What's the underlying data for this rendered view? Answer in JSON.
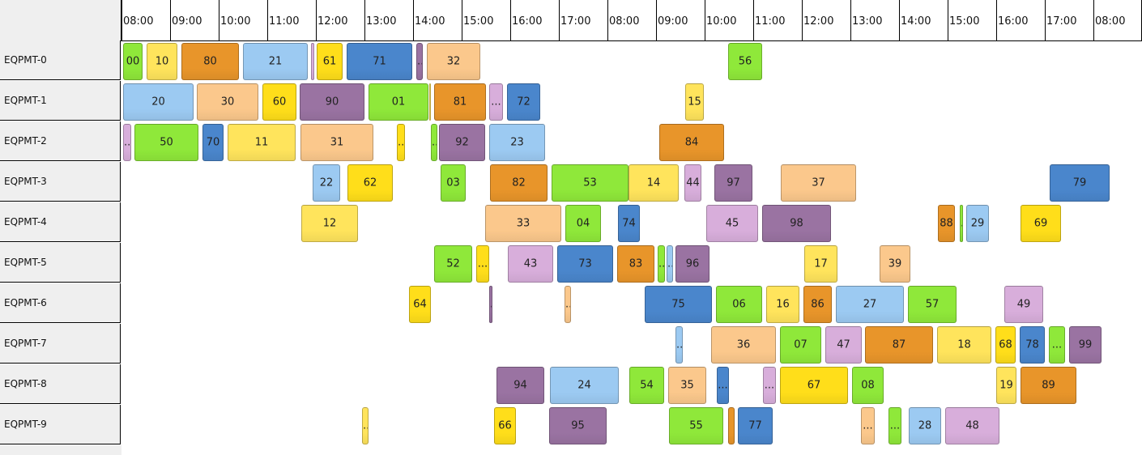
{
  "timeline": {
    "hours": [
      "08:00",
      "09:00",
      "10:00",
      "11:00",
      "12:00",
      "13:00",
      "14:00",
      "15:00",
      "16:00",
      "17:00",
      "08:00",
      "09:00",
      "10:00",
      "11:00",
      "12:00",
      "13:00",
      "14:00",
      "15:00",
      "16:00",
      "17:00",
      "08:00"
    ]
  },
  "colors": {
    "green": "#8fe83a",
    "yellow": "#ffe45c",
    "orange": "#e8952a",
    "lightblue": "#9ccaf2",
    "purple": "#9a73a2",
    "peach": "#fbc88c",
    "gold": "#ffde1a",
    "blue": "#4a86cc",
    "pink": "#d8aedb"
  },
  "rows": [
    {
      "name": "EQPMT-0",
      "tasks": [
        {
          "label": "00",
          "color": "green"
        },
        {
          "label": "10",
          "color": "yellow"
        },
        {
          "label": "80",
          "color": "orange"
        },
        {
          "label": "21",
          "color": "lightblue"
        },
        {
          "label": "",
          "color": "pink"
        },
        {
          "label": "61",
          "color": "gold"
        },
        {
          "label": "71",
          "color": "blue"
        },
        {
          "label": "...",
          "color": "purple"
        },
        {
          "label": "32",
          "color": "peach"
        },
        {
          "label": "56",
          "color": "green"
        }
      ]
    },
    {
      "name": "EQPMT-1",
      "tasks": [
        {
          "label": "20",
          "color": "lightblue"
        },
        {
          "label": "30",
          "color": "peach"
        },
        {
          "label": "60",
          "color": "gold"
        },
        {
          "label": "90",
          "color": "purple"
        },
        {
          "label": "01",
          "color": "green"
        },
        {
          "label": "",
          "color": "yellow"
        },
        {
          "label": "81",
          "color": "orange"
        },
        {
          "label": "...",
          "color": "pink"
        },
        {
          "label": "72",
          "color": "blue"
        },
        {
          "label": "15",
          "color": "yellow"
        }
      ]
    },
    {
      "name": "EQPMT-2",
      "tasks": [
        {
          "label": "...",
          "color": "pink"
        },
        {
          "label": "50",
          "color": "green"
        },
        {
          "label": "70",
          "color": "blue"
        },
        {
          "label": "11",
          "color": "yellow"
        },
        {
          "label": "31",
          "color": "peach"
        },
        {
          "label": "...",
          "color": "gold"
        },
        {
          "label": "...",
          "color": "green"
        },
        {
          "label": "92",
          "color": "purple"
        },
        {
          "label": "23",
          "color": "lightblue"
        },
        {
          "label": "84",
          "color": "orange"
        }
      ]
    },
    {
      "name": "EQPMT-3",
      "tasks": [
        {
          "label": "22",
          "color": "lightblue"
        },
        {
          "label": "62",
          "color": "gold"
        },
        {
          "label": "03",
          "color": "green"
        },
        {
          "label": "82",
          "color": "orange"
        },
        {
          "label": "53",
          "color": "green"
        },
        {
          "label": "14",
          "color": "yellow"
        },
        {
          "label": "44",
          "color": "pink"
        },
        {
          "label": "97",
          "color": "purple"
        },
        {
          "label": "37",
          "color": "peach"
        },
        {
          "label": "79",
          "color": "blue"
        }
      ]
    },
    {
      "name": "EQPMT-4",
      "tasks": [
        {
          "label": "12",
          "color": "yellow"
        },
        {
          "label": "33",
          "color": "peach"
        },
        {
          "label": "04",
          "color": "green"
        },
        {
          "label": "74",
          "color": "blue"
        },
        {
          "label": "45",
          "color": "pink"
        },
        {
          "label": "98",
          "color": "purple"
        },
        {
          "label": "88",
          "color": "orange"
        },
        {
          "label": ".",
          "color": "green"
        },
        {
          "label": "29",
          "color": "lightblue"
        },
        {
          "label": "69",
          "color": "gold"
        }
      ]
    },
    {
      "name": "EQPMT-5",
      "tasks": [
        {
          "label": "52",
          "color": "green"
        },
        {
          "label": "...",
          "color": "gold"
        },
        {
          "label": "43",
          "color": "pink"
        },
        {
          "label": "73",
          "color": "blue"
        },
        {
          "label": "83",
          "color": "orange"
        },
        {
          "label": "...",
          "color": "green"
        },
        {
          "label": "...",
          "color": "lightblue"
        },
        {
          "label": "96",
          "color": "purple"
        },
        {
          "label": "17",
          "color": "yellow"
        },
        {
          "label": "39",
          "color": "peach"
        }
      ]
    },
    {
      "name": "EQPMT-6",
      "tasks": [
        {
          "label": "64",
          "color": "gold"
        },
        {
          "label": ".",
          "color": "purple"
        },
        {
          "label": "...",
          "color": "peach"
        },
        {
          "label": "75",
          "color": "blue"
        },
        {
          "label": "06",
          "color": "green"
        },
        {
          "label": "16",
          "color": "yellow"
        },
        {
          "label": "86",
          "color": "orange"
        },
        {
          "label": "27",
          "color": "lightblue"
        },
        {
          "label": "57",
          "color": "green"
        },
        {
          "label": "49",
          "color": "pink"
        }
      ]
    },
    {
      "name": "EQPMT-7",
      "tasks": [
        {
          "label": "...",
          "color": "lightblue"
        },
        {
          "label": "36",
          "color": "peach"
        },
        {
          "label": "07",
          "color": "green"
        },
        {
          "label": "47",
          "color": "pink"
        },
        {
          "label": "87",
          "color": "orange"
        },
        {
          "label": "18",
          "color": "yellow"
        },
        {
          "label": "68",
          "color": "gold"
        },
        {
          "label": "78",
          "color": "blue"
        },
        {
          "label": "...",
          "color": "green"
        },
        {
          "label": "99",
          "color": "purple"
        }
      ]
    },
    {
      "name": "EQPMT-8",
      "tasks": [
        {
          "label": "94",
          "color": "purple"
        },
        {
          "label": "24",
          "color": "lightblue"
        },
        {
          "label": "54",
          "color": "green"
        },
        {
          "label": "35",
          "color": "peach"
        },
        {
          "label": "...",
          "color": "blue"
        },
        {
          "label": "...",
          "color": "pink"
        },
        {
          "label": "67",
          "color": "gold"
        },
        {
          "label": "08",
          "color": "green"
        },
        {
          "label": "19",
          "color": "yellow"
        },
        {
          "label": "89",
          "color": "orange"
        }
      ]
    },
    {
      "name": "EQPMT-9",
      "tasks": [
        {
          "label": "...",
          "color": "yellow"
        },
        {
          "label": "66",
          "color": "gold"
        },
        {
          "label": "95",
          "color": "purple"
        },
        {
          "label": "55",
          "color": "green"
        },
        {
          "label": "",
          "color": "orange"
        },
        {
          "label": "77",
          "color": "blue"
        },
        {
          "label": "...",
          "color": "peach"
        },
        {
          "label": "...",
          "color": "green"
        },
        {
          "label": "28",
          "color": "lightblue"
        },
        {
          "label": "48",
          "color": "pink"
        }
      ]
    }
  ]
}
